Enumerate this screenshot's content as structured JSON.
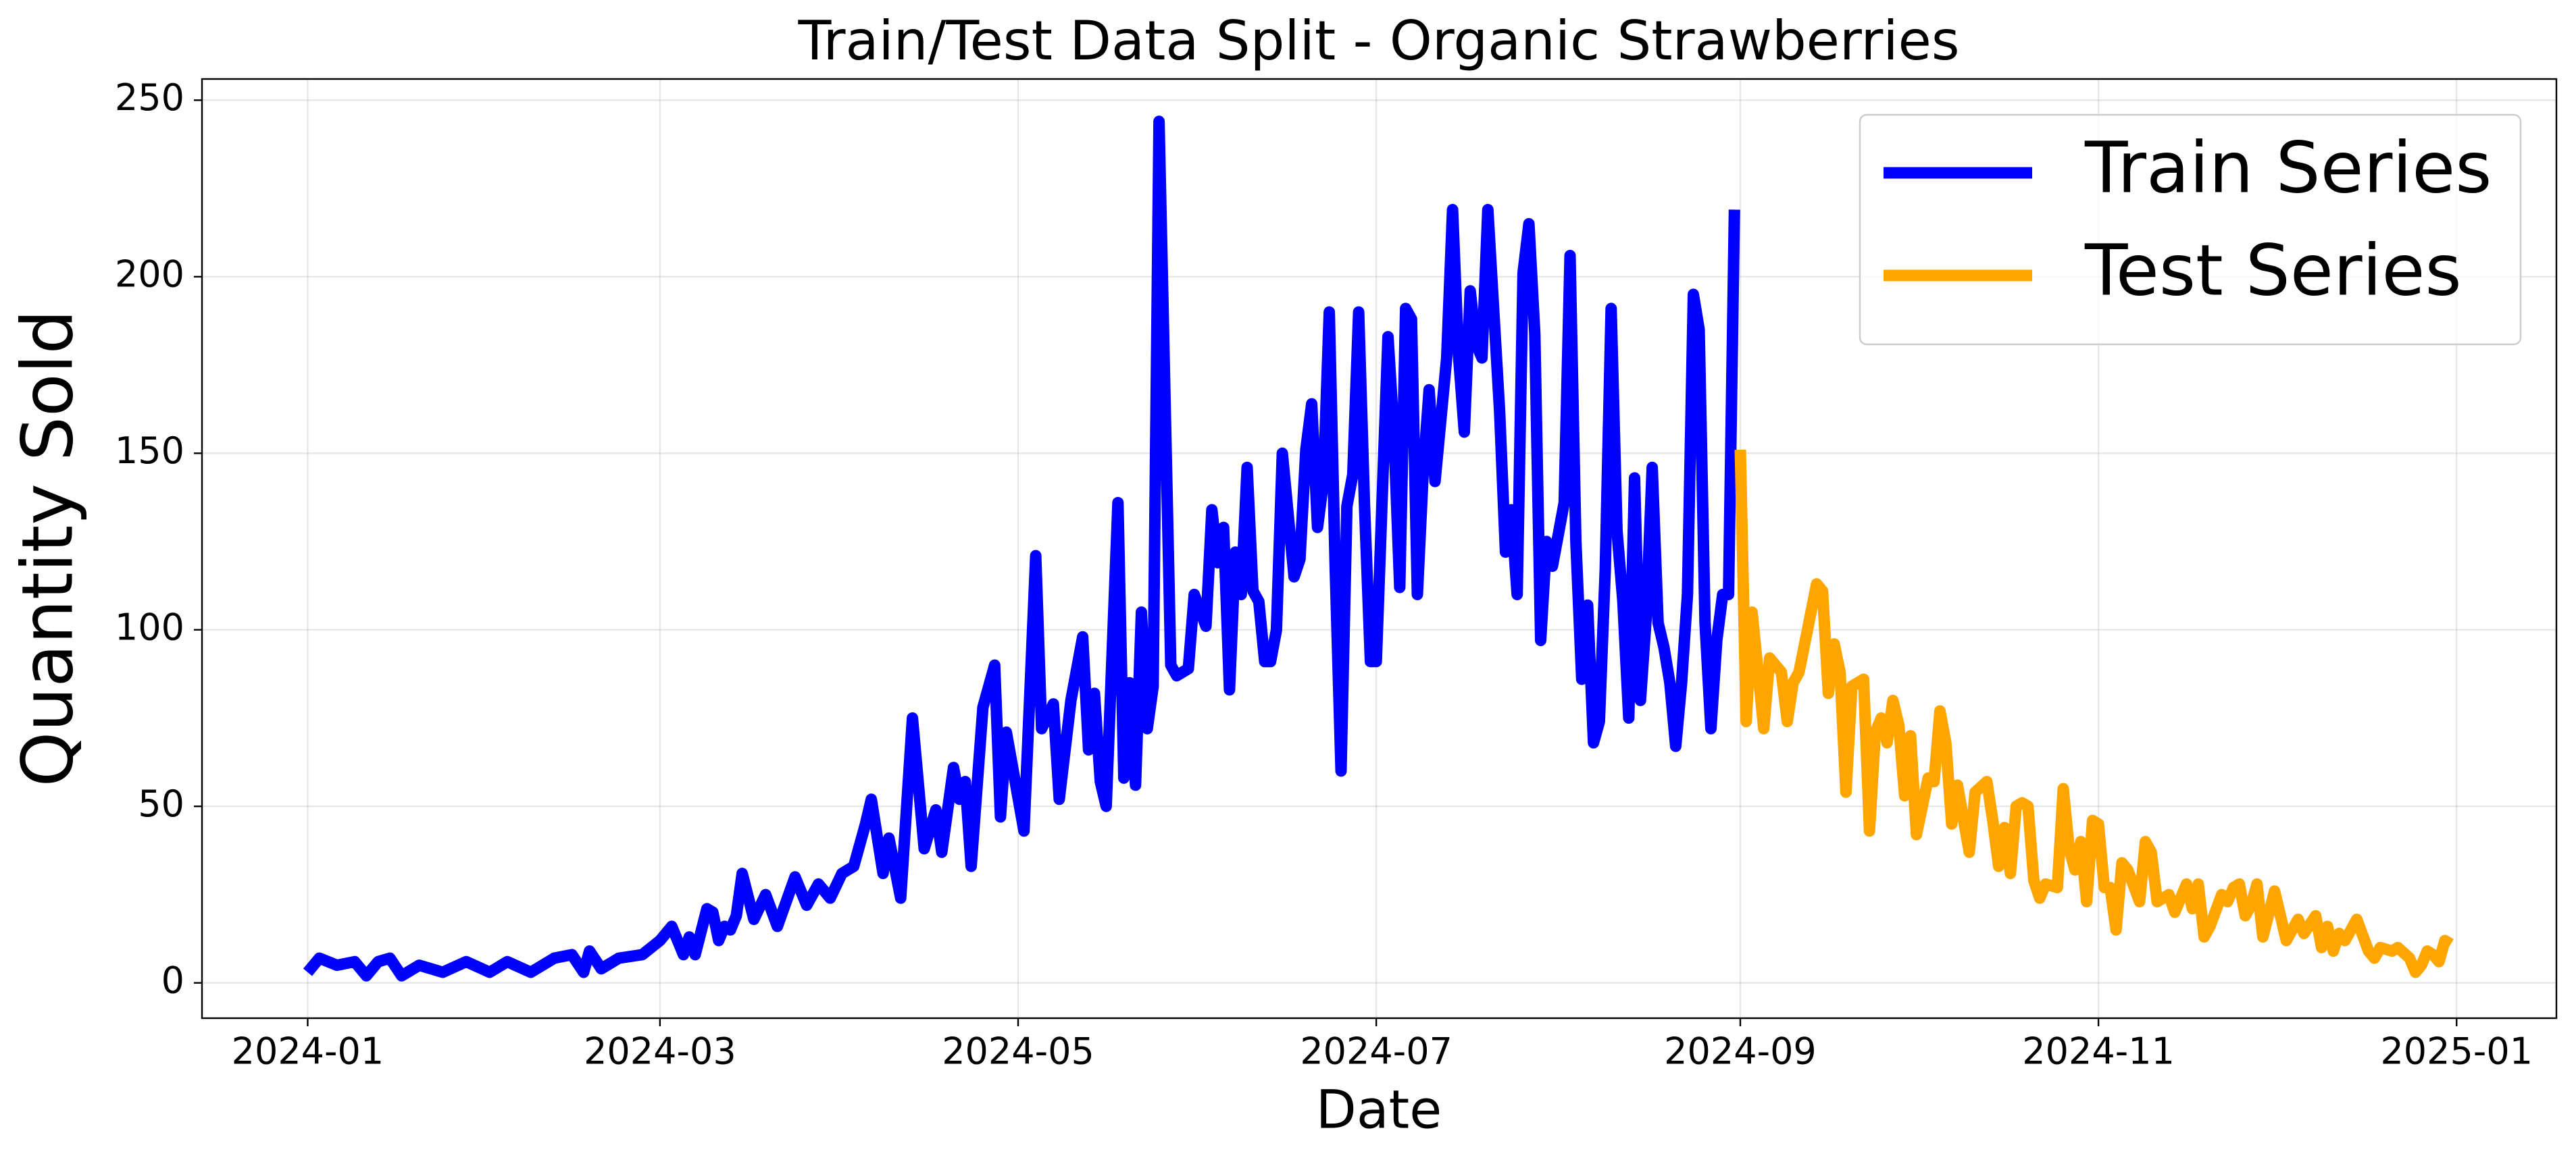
{
  "chart_data": {
    "type": "line",
    "title": "Train/Test Data Split - Organic Strawberries",
    "x_label": "Date",
    "y_label": "Quantity Sold",
    "xlim": [
      "2023-12-14",
      "2025-01-18"
    ],
    "ylim": [
      -10,
      256
    ],
    "xticks": [
      {
        "value": "2024-01-01",
        "label": "2024-01"
      },
      {
        "value": "2024-03-01",
        "label": "2024-03"
      },
      {
        "value": "2024-05-01",
        "label": "2024-05"
      },
      {
        "value": "2024-07-01",
        "label": "2024-07"
      },
      {
        "value": "2024-09-01",
        "label": "2024-09"
      },
      {
        "value": "2024-11-01",
        "label": "2024-11"
      },
      {
        "value": "2025-01-01",
        "label": "2025-01"
      }
    ],
    "yticks": [
      0,
      50,
      100,
      150,
      200,
      250
    ],
    "grid": true,
    "legend": "upper right",
    "series": [
      {
        "name": "Train Series",
        "color": "#0000ff",
        "x": [
          "2024-01-01",
          "2024-01-03",
          "2024-01-06",
          "2024-01-09",
          "2024-01-11",
          "2024-01-13",
          "2024-01-15",
          "2024-01-17",
          "2024-01-20",
          "2024-01-24",
          "2024-01-28",
          "2024-02-01",
          "2024-02-04",
          "2024-02-08",
          "2024-02-12",
          "2024-02-15",
          "2024-02-17",
          "2024-02-18",
          "2024-02-20",
          "2024-02-23",
          "2024-02-27",
          "2024-03-01",
          "2024-03-03",
          "2024-03-05",
          "2024-03-06",
          "2024-03-07",
          "2024-03-09",
          "2024-03-10",
          "2024-03-11",
          "2024-03-12",
          "2024-03-13",
          "2024-03-14",
          "2024-03-15",
          "2024-03-17",
          "2024-03-19",
          "2024-03-21",
          "2024-03-24",
          "2024-03-26",
          "2024-03-28",
          "2024-03-30",
          "2024-04-01",
          "2024-04-03",
          "2024-04-05",
          "2024-04-06",
          "2024-04-08",
          "2024-04-09",
          "2024-04-11",
          "2024-04-13",
          "2024-04-15",
          "2024-04-17",
          "2024-04-18",
          "2024-04-20",
          "2024-04-21",
          "2024-04-22",
          "2024-04-23",
          "2024-04-25",
          "2024-04-27",
          "2024-04-28",
          "2024-04-29",
          "2024-05-02",
          "2024-05-04",
          "2024-05-05",
          "2024-05-07",
          "2024-05-08",
          "2024-05-10",
          "2024-05-12",
          "2024-05-13",
          "2024-05-14",
          "2024-05-15",
          "2024-05-16",
          "2024-05-18",
          "2024-05-19",
          "2024-05-20",
          "2024-05-21",
          "2024-05-22",
          "2024-05-23",
          "2024-05-24",
          "2024-05-25",
          "2024-05-27",
          "2024-05-28",
          "2024-05-30",
          "2024-05-31",
          "2024-06-02",
          "2024-06-03",
          "2024-06-04",
          "2024-06-05",
          "2024-06-06",
          "2024-06-07",
          "2024-06-08",
          "2024-06-09",
          "2024-06-10",
          "2024-06-11",
          "2024-06-12",
          "2024-06-13",
          "2024-06-14",
          "2024-06-15",
          "2024-06-17",
          "2024-06-18",
          "2024-06-19",
          "2024-06-20",
          "2024-06-21",
          "2024-06-22",
          "2024-06-23",
          "2024-06-24",
          "2024-06-25",
          "2024-06-26",
          "2024-06-27",
          "2024-06-28",
          "2024-06-29",
          "2024-06-30",
          "2024-07-01",
          "2024-07-03",
          "2024-07-04",
          "2024-07-05",
          "2024-07-06",
          "2024-07-07",
          "2024-07-08",
          "2024-07-09",
          "2024-07-10",
          "2024-07-11",
          "2024-07-13",
          "2024-07-14",
          "2024-07-15",
          "2024-07-16",
          "2024-07-17",
          "2024-07-18",
          "2024-07-19",
          "2024-07-20",
          "2024-07-22",
          "2024-07-23",
          "2024-07-24",
          "2024-07-25",
          "2024-07-26",
          "2024-07-27",
          "2024-07-28",
          "2024-07-29",
          "2024-07-30",
          "2024-07-31",
          "2024-08-01",
          "2024-08-02",
          "2024-08-03",
          "2024-08-04",
          "2024-08-05",
          "2024-08-06",
          "2024-08-07",
          "2024-08-08",
          "2024-08-09",
          "2024-08-10",
          "2024-08-11",
          "2024-08-12",
          "2024-08-13",
          "2024-08-14",
          "2024-08-15",
          "2024-08-16",
          "2024-08-17",
          "2024-08-18",
          "2024-08-19",
          "2024-08-20",
          "2024-08-21",
          "2024-08-22",
          "2024-08-23",
          "2024-08-24",
          "2024-08-25",
          "2024-08-26",
          "2024-08-27",
          "2024-08-28",
          "2024-08-29",
          "2024-08-30",
          "2024-08-31"
        ],
        "values": [
          3,
          7,
          5,
          6,
          2,
          6,
          7,
          2,
          5,
          3,
          6,
          3,
          6,
          3,
          7,
          8,
          3,
          9,
          4,
          7,
          8,
          12,
          16,
          8,
          13,
          8,
          21,
          20,
          12,
          16,
          15,
          19,
          31,
          18,
          25,
          16,
          30,
          22,
          28,
          24,
          31,
          33,
          45,
          52,
          31,
          41,
          24,
          75,
          38,
          49,
          37,
          61,
          52,
          57,
          33,
          78,
          90,
          47,
          71,
          43,
          121,
          72,
          79,
          52,
          80,
          98,
          66,
          82,
          57,
          50,
          136,
          58,
          85,
          56,
          105,
          72,
          84,
          244,
          90,
          87,
          89,
          110,
          101,
          134,
          119,
          129,
          83,
          122,
          110,
          146,
          111,
          108,
          91,
          91,
          100,
          150,
          115,
          120,
          151,
          164,
          129,
          142,
          190,
          118,
          60,
          135,
          144,
          190,
          135,
          91,
          91,
          183,
          156,
          112,
          191,
          188,
          110,
          145,
          168,
          142,
          177,
          219,
          178,
          156,
          196,
          181,
          177,
          219,
          162,
          122,
          134,
          110,
          201,
          215,
          184,
          97,
          125,
          118,
          127,
          136,
          206,
          125,
          86,
          107,
          68,
          74,
          117,
          191,
          128,
          108,
          75,
          143,
          80,
          104,
          146,
          102,
          95,
          85,
          67,
          85,
          110,
          195,
          185,
          102,
          72,
          97,
          110,
          110,
          219
        ]
      },
      {
        "name": "Test Series",
        "color": "#ffa500",
        "x": [
          "2024-09-01",
          "2024-09-02",
          "2024-09-03",
          "2024-09-05",
          "2024-09-06",
          "2024-09-08",
          "2024-09-09",
          "2024-09-10",
          "2024-09-11",
          "2024-09-14",
          "2024-09-15",
          "2024-09-16",
          "2024-09-17",
          "2024-09-18",
          "2024-09-19",
          "2024-09-20",
          "2024-09-22",
          "2024-09-23",
          "2024-09-24",
          "2024-09-25",
          "2024-09-26",
          "2024-09-27",
          "2024-09-28",
          "2024-09-29",
          "2024-09-30",
          "2024-10-01",
          "2024-10-02",
          "2024-10-03",
          "2024-10-04",
          "2024-10-05",
          "2024-10-06",
          "2024-10-07",
          "2024-10-08",
          "2024-10-10",
          "2024-10-11",
          "2024-10-13",
          "2024-10-14",
          "2024-10-15",
          "2024-10-16",
          "2024-10-17",
          "2024-10-18",
          "2024-10-19",
          "2024-10-20",
          "2024-10-21",
          "2024-10-22",
          "2024-10-23",
          "2024-10-25",
          "2024-10-26",
          "2024-10-27",
          "2024-10-28",
          "2024-10-29",
          "2024-10-30",
          "2024-10-31",
          "2024-11-01",
          "2024-11-02",
          "2024-11-03",
          "2024-11-04",
          "2024-11-05",
          "2024-11-06",
          "2024-11-08",
          "2024-11-09",
          "2024-11-10",
          "2024-11-11",
          "2024-11-13",
          "2024-11-14",
          "2024-11-16",
          "2024-11-17",
          "2024-11-18",
          "2024-11-19",
          "2024-11-20",
          "2024-11-22",
          "2024-11-23",
          "2024-11-24",
          "2024-11-25",
          "2024-11-26",
          "2024-11-27",
          "2024-11-28",
          "2024-11-29",
          "2024-12-01",
          "2024-12-03",
          "2024-12-05",
          "2024-12-06",
          "2024-12-08",
          "2024-12-09",
          "2024-12-10",
          "2024-12-11",
          "2024-12-12",
          "2024-12-13",
          "2024-12-15",
          "2024-12-17",
          "2024-12-18",
          "2024-12-19",
          "2024-12-21",
          "2024-12-22",
          "2024-12-24",
          "2024-12-25",
          "2024-12-26",
          "2024-12-27",
          "2024-12-28",
          "2024-12-29",
          "2024-12-30",
          "2024-12-31"
        ],
        "values": [
          151,
          74,
          105,
          72,
          92,
          88,
          74,
          85,
          88,
          113,
          111,
          82,
          96,
          88,
          54,
          84,
          86,
          43,
          71,
          75,
          68,
          80,
          73,
          53,
          70,
          42,
          50,
          58,
          57,
          77,
          68,
          45,
          56,
          37,
          54,
          57,
          46,
          33,
          44,
          31,
          50,
          51,
          50,
          29,
          24,
          28,
          27,
          55,
          38,
          32,
          40,
          23,
          46,
          45,
          27,
          27,
          15,
          34,
          32,
          23,
          40,
          37,
          23,
          25,
          20,
          28,
          21,
          28,
          13,
          16,
          25,
          23,
          27,
          28,
          19,
          22,
          28,
          13,
          26,
          12,
          18,
          14,
          19,
          10,
          16,
          9,
          14,
          12,
          18,
          9,
          7,
          10,
          9,
          10,
          7,
          3,
          5,
          9,
          8,
          6,
          12,
          11
        ]
      }
    ]
  }
}
